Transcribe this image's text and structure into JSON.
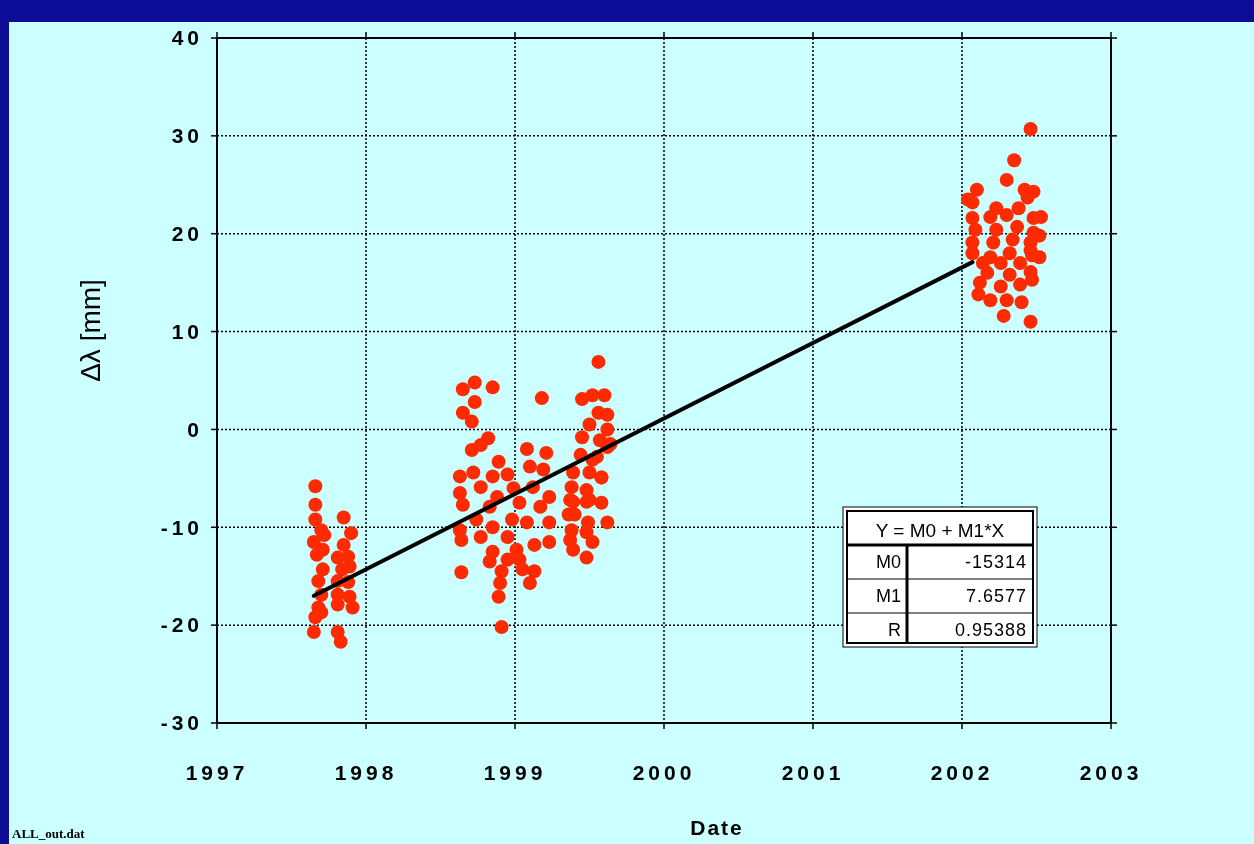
{
  "chart_data": {
    "type": "scatter",
    "xlabel": "Date",
    "ylabel": "Δλ  [mm]",
    "xlim": [
      1997,
      2003
    ],
    "xticks": [
      1997,
      1998,
      1999,
      2000,
      2001,
      2002,
      2003
    ],
    "ylim": [
      -30,
      40
    ],
    "yticks": [
      -30,
      -20,
      -10,
      0,
      10,
      20,
      30,
      40
    ],
    "grid": true,
    "annotations": [
      "Y = M0 + M1*X",
      "M0",
      "-15314",
      "M1",
      "7.6577",
      "R",
      "0.95388",
      "ALL_out.dat"
    ],
    "series": [
      {
        "marker": "circle",
        "color": "#ff2a00",
        "x": [
          1997.66,
          1997.66,
          1997.66,
          1997.85,
          1997.7,
          1997.72,
          1997.9,
          1997.65,
          1997.85,
          1997.71,
          1997.67,
          1997.81,
          1997.88,
          1997.71,
          1997.84,
          1997.89,
          1997.68,
          1997.81,
          1997.88,
          1997.7,
          1997.81,
          1997.89,
          1997.81,
          1997.91,
          1997.68,
          1997.66,
          1997.7,
          1997.65,
          1997.81,
          1997.83,
          1998.65,
          1998.73,
          1998.85,
          1999.18,
          1998.73,
          1998.65,
          1998.71,
          1998.82,
          1998.71,
          1998.77,
          1998.89,
          1998.63,
          1998.72,
          1998.85,
          1998.95,
          1999.08,
          1999.1,
          1999.21,
          1999.19,
          1998.63,
          1998.77,
          1998.88,
          1998.99,
          1999.12,
          1999.23,
          1998.65,
          1998.83,
          1999.03,
          1999.17,
          1998.63,
          1998.74,
          1998.85,
          1998.98,
          1999.08,
          1999.23,
          1998.64,
          1998.77,
          1998.95,
          1999.13,
          1999.23,
          1998.85,
          1999.01,
          1998.83,
          1998.95,
          1999.03,
          1998.64,
          1998.91,
          1999.05,
          1999.13,
          1998.9,
          1999.1,
          1998.89,
          1998.91,
          1999.56,
          1999.45,
          1999.52,
          1999.6,
          1999.56,
          1999.62,
          1999.5,
          1999.62,
          1999.45,
          1999.57,
          1999.62,
          1999.44,
          1999.55,
          1999.39,
          1999.5,
          1999.58,
          1999.38,
          1999.48,
          1999.39,
          1999.5,
          1999.48,
          1999.37,
          1999.4,
          1999.58,
          1999.49,
          1999.62,
          1999.58,
          1999.64,
          1999.52,
          1999.38,
          1999.36,
          1999.48,
          1999.52,
          1999.48,
          1999.39,
          1999.37,
          2002.46,
          2002.35,
          2002.3,
          2002.1,
          2002.42,
          2002.48,
          2002.44,
          2002.07,
          2002.23,
          2002.38,
          2002.07,
          2002.19,
          2002.3,
          2002.48,
          2002.09,
          2002.23,
          2002.37,
          2002.48,
          2002.07,
          2002.21,
          2002.34,
          2002.46,
          2002.07,
          2002.19,
          2002.32,
          2002.47,
          2002.14,
          2002.26,
          2002.39,
          2002.17,
          2002.32,
          2002.46,
          2002.12,
          2002.26,
          2002.39,
          2002.47,
          2002.11,
          2002.19,
          2002.3,
          2002.4,
          2002.28,
          2002.46,
          2002.53,
          2002.52,
          2002.52,
          2002.46,
          2002.04
        ],
        "values": [
          -5.8,
          -7.7,
          -9.2,
          -9.0,
          -10.3,
          -10.8,
          -10.6,
          -11.5,
          -11.8,
          -12.3,
          -12.8,
          -13.1,
          -13.0,
          -14.3,
          -14.3,
          -14.0,
          -15.5,
          -15.5,
          -15.6,
          -16.9,
          -16.9,
          -17.1,
          -17.9,
          -18.2,
          -18.2,
          -19.2,
          -18.7,
          -20.7,
          -20.7,
          -21.7,
          4.1,
          4.8,
          4.3,
          3.2,
          2.8,
          1.7,
          0.8,
          -0.9,
          -2.1,
          -1.6,
          -3.3,
          -4.8,
          -4.4,
          -4.8,
          -4.6,
          -2.0,
          -3.8,
          -2.4,
          -4.1,
          -6.5,
          -5.9,
          -6.9,
          -6.0,
          -5.9,
          -6.9,
          -7.7,
          -7.9,
          -7.5,
          -7.9,
          -10.3,
          -9.2,
          -10.0,
          -9.2,
          -9.5,
          -9.5,
          -11.3,
          -11.0,
          -11.0,
          -11.8,
          -11.5,
          -12.5,
          -12.3,
          -13.5,
          -13.3,
          -13.3,
          -14.6,
          -14.5,
          -14.3,
          -14.5,
          -15.7,
          -15.7,
          -17.1,
          -20.2,
          6.9,
          3.1,
          3.5,
          3.5,
          1.7,
          1.5,
          0.5,
          0.0,
          -0.8,
          -1.1,
          -1.8,
          -2.6,
          -2.8,
          -4.4,
          -4.4,
          -4.9,
          -5.9,
          -6.2,
          -7.4,
          -7.2,
          -7.4,
          -7.2,
          -8.7,
          -7.5,
          -9.5,
          -9.5,
          -4.9,
          -1.5,
          -3.1,
          -10.3,
          -8.7,
          -10.5,
          -11.5,
          -13.1,
          -12.3,
          -11.3,
          30.7,
          27.5,
          25.5,
          24.5,
          24.5,
          24.3,
          23.7,
          23.2,
          22.6,
          22.6,
          21.6,
          21.7,
          21.9,
          21.6,
          20.4,
          20.4,
          20.7,
          20.1,
          19.1,
          19.1,
          19.4,
          19.1,
          18.0,
          17.6,
          18.0,
          17.8,
          17.0,
          17.0,
          17.0,
          16.0,
          15.8,
          16.1,
          15.0,
          14.6,
          14.8,
          15.3,
          13.8,
          13.2,
          13.2,
          13.0,
          11.6,
          11.0,
          21.7,
          19.8,
          17.6,
          18.3,
          23.5
        ]
      },
      {
        "type": "line",
        "color": "#000000",
        "x": [
          1997.65,
          2002.07
        ],
        "values": [
          -17.0,
          17.1
        ]
      }
    ]
  }
}
